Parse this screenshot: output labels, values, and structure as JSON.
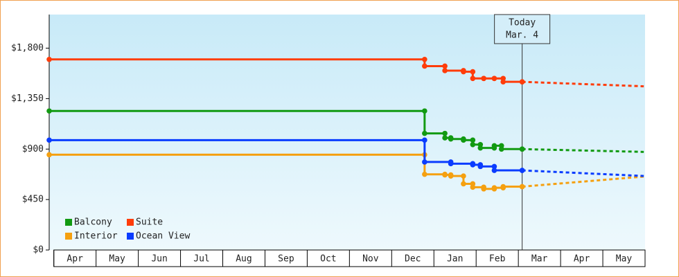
{
  "chart_data": {
    "type": "step",
    "ylim": [
      0,
      2100
    ],
    "yticks": [
      {
        "value": 0,
        "label": "$0"
      },
      {
        "value": 450,
        "label": "$450"
      },
      {
        "value": 900,
        "label": "$900"
      },
      {
        "value": 1350,
        "label": "$1,350"
      },
      {
        "value": 1800,
        "label": "$1,800"
      }
    ],
    "xlim": [
      -0.11,
      14
    ],
    "xticks": [
      {
        "value": 0,
        "label": "Apr"
      },
      {
        "value": 1,
        "label": "May"
      },
      {
        "value": 2,
        "label": "Jun"
      },
      {
        "value": 3,
        "label": "Jul"
      },
      {
        "value": 4,
        "label": "Aug"
      },
      {
        "value": 5,
        "label": "Sep"
      },
      {
        "value": 6,
        "label": "Oct"
      },
      {
        "value": 7,
        "label": "Nov"
      },
      {
        "value": 8,
        "label": "Dec"
      },
      {
        "value": 9,
        "label": "Jan"
      },
      {
        "value": 10,
        "label": "Feb"
      },
      {
        "value": 11,
        "label": "Mar"
      },
      {
        "value": 12,
        "label": "Apr"
      },
      {
        "value": 13,
        "label": "May"
      },
      {
        "value": 14,
        "label": ""
      }
    ],
    "today": {
      "x": 11.09,
      "label": "Today",
      "date": "Mar. 4"
    },
    "series": [
      {
        "name": "Balcony",
        "color": "#129a12",
        "x": [
          -0.11,
          8.78,
          9.26,
          9.4,
          9.7,
          9.92,
          10.1,
          10.43,
          10.6,
          11.09
        ],
        "values": [
          1240,
          1040,
          1000,
          990,
          980,
          940,
          910,
          930,
          900,
          900
        ],
        "forecast": {
          "x": [
            11.09,
            13.97
          ],
          "values": [
            900,
            875
          ]
        }
      },
      {
        "name": "Suite",
        "color": "#ff3c0a",
        "x": [
          -0.11,
          8.78,
          9.26,
          9.7,
          9.92,
          10.18,
          10.43,
          10.64,
          11.09
        ],
        "values": [
          1700,
          1640,
          1600,
          1590,
          1530,
          1530,
          1530,
          1500,
          1500
        ],
        "forecast": {
          "x": [
            11.09,
            13.97
          ],
          "values": [
            1500,
            1460
          ]
        }
      },
      {
        "name": "Interior",
        "color": "#f5a010",
        "x": [
          -0.11,
          8.78,
          9.26,
          9.4,
          9.7,
          9.92,
          10.18,
          10.43,
          10.64,
          11.09
        ],
        "values": [
          850,
          675,
          670,
          660,
          590,
          560,
          545,
          555,
          565,
          565
        ],
        "forecast": {
          "x": [
            11.09,
            13.97
          ],
          "values": [
            565,
            655
          ]
        }
      },
      {
        "name": "Ocean View",
        "color": "#0a3cff",
        "x": [
          -0.11,
          8.78,
          9.4,
          9.92,
          10.1,
          10.43,
          11.09
        ],
        "values": [
          980,
          785,
          770,
          760,
          745,
          710,
          710
        ],
        "forecast": {
          "x": [
            11.09,
            13.97
          ],
          "values": [
            710,
            660
          ]
        }
      }
    ]
  }
}
